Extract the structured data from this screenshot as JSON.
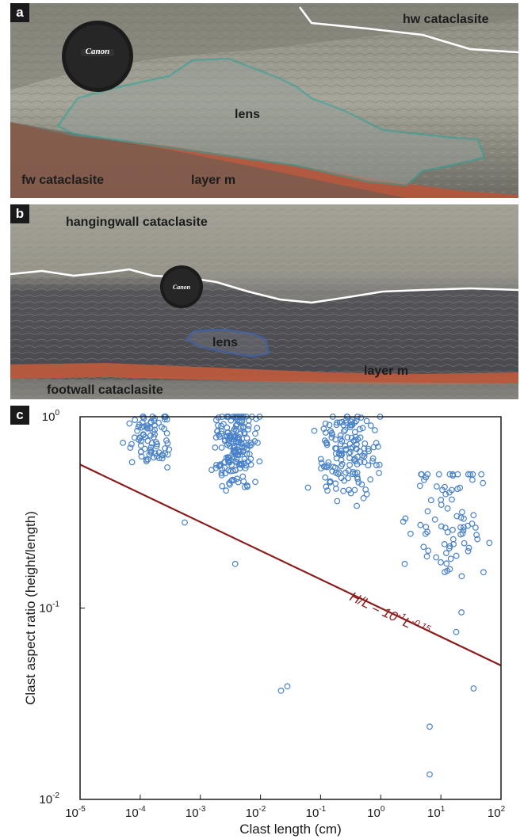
{
  "panels": {
    "a": {
      "letter": "a",
      "labels": {
        "hw": "hw cataclasite",
        "lens": "lens",
        "fw": "fw cataclasite",
        "layer": "layer m"
      },
      "lens_cap_brand": "Canon"
    },
    "b": {
      "letter": "b",
      "labels": {
        "hanging": "hangingwall cataclasite",
        "lens": "lens",
        "layer": "layer m",
        "foot": "footwall cataclasite"
      },
      "lens_cap_brand": "Canon"
    },
    "c": {
      "letter": "c"
    }
  },
  "colors": {
    "layer_m": "#b9553a",
    "lens_outline_a": "#2fa39a",
    "lens_outline_b": "#3d6fd6",
    "markers": "#4a82c8",
    "fit_line": "#8b1c1c"
  },
  "chart_data": {
    "type": "scatter",
    "xlabel": "Clast length (cm)",
    "ylabel": "Clast aspect ratio (height/length)",
    "x_scale": "log",
    "y_scale": "log",
    "xlim": [
      1e-05,
      100
    ],
    "ylim": [
      0.01,
      1
    ],
    "x_ticks": [
      {
        "base": "10",
        "exp": "-5"
      },
      {
        "base": "10",
        "exp": "-4"
      },
      {
        "base": "10",
        "exp": "-3"
      },
      {
        "base": "10",
        "exp": "-2"
      },
      {
        "base": "10",
        "exp": "-1"
      },
      {
        "base": "10",
        "exp": "0"
      },
      {
        "base": "10",
        "exp": "1"
      },
      {
        "base": "10",
        "exp": "2"
      }
    ],
    "y_ticks": [
      {
        "base": "10",
        "exp": "-2"
      },
      {
        "base": "10",
        "exp": "-1"
      },
      {
        "base": "10",
        "exp": "0"
      }
    ],
    "marker": "open-circle",
    "fit": {
      "label_main": "H/L = 10",
      "label_exp1": "-1",
      "label_mid": "L",
      "label_exp2": "-0.15",
      "coefficient": 0.1,
      "exponent": -0.15
    },
    "clusters": [
      {
        "x_range": [
          4e-05,
          0.0005
        ],
        "y_range": [
          0.45,
          1.0
        ],
        "count": 80
      },
      {
        "x_range": [
          0.0012,
          0.012
        ],
        "y_range": [
          0.32,
          1.0
        ],
        "count": 180
      },
      {
        "x_range": [
          0.05,
          1.5
        ],
        "y_range": [
          0.25,
          1.0
        ],
        "count": 150
      },
      {
        "x_range": [
          1.5,
          80
        ],
        "y_range": [
          0.09,
          0.5
        ],
        "count": 80
      }
    ],
    "outliers": [
      {
        "x": 0.00055,
        "y": 0.28
      },
      {
        "x": 0.0038,
        "y": 0.17
      },
      {
        "x": 0.022,
        "y": 0.037
      },
      {
        "x": 0.028,
        "y": 0.039
      },
      {
        "x": 6.5,
        "y": 0.024
      },
      {
        "x": 6.5,
        "y": 0.0135
      },
      {
        "x": 35,
        "y": 0.038
      },
      {
        "x": 18,
        "y": 0.075
      },
      {
        "x": 22,
        "y": 0.095
      },
      {
        "x": 2.5,
        "y": 0.17
      },
      {
        "x": 50,
        "y": 0.45
      },
      {
        "x": 0.8,
        "y": 0.85
      }
    ]
  }
}
